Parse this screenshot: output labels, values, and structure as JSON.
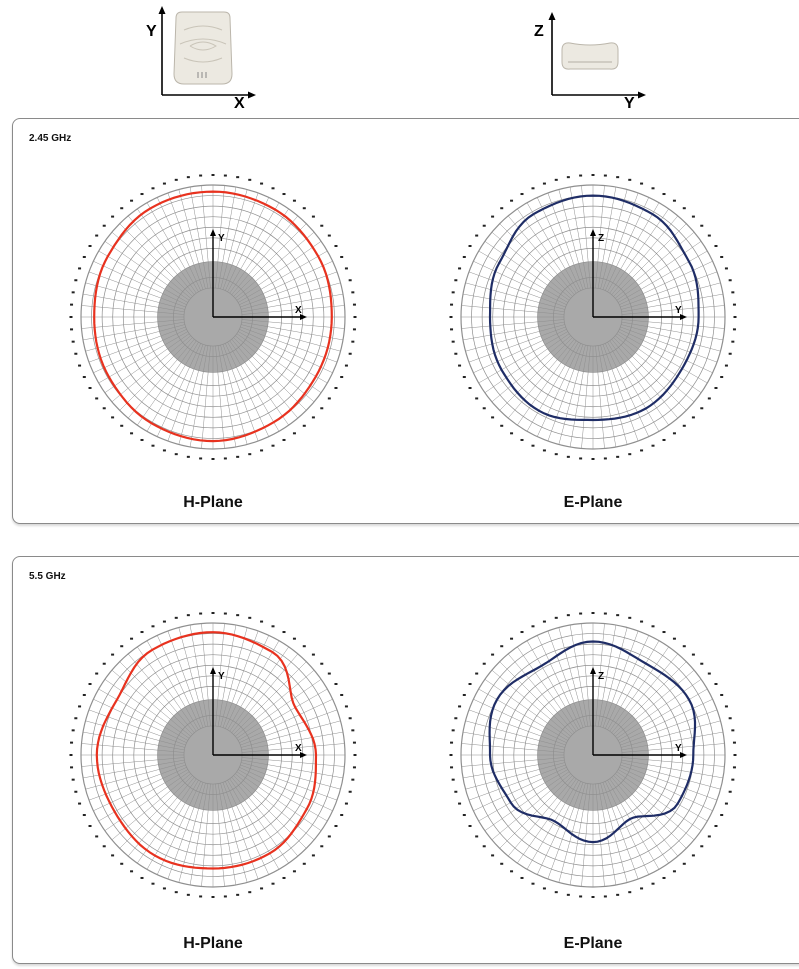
{
  "top_diagrams": [
    {
      "axis_vertical": "Y",
      "axis_horizontal": "X",
      "device_view": "front"
    },
    {
      "axis_vertical": "Z",
      "axis_horizontal": "Y",
      "device_view": "side"
    }
  ],
  "colors": {
    "h_plane": "#e8321f",
    "e_plane": "#1f2d66",
    "grid": "#8f8f8f",
    "core": "#a9a9a9"
  },
  "panels": [
    {
      "label": "2.45 GHz",
      "plots": [
        {
          "name": "H-Plane"
        },
        {
          "name": "E-Plane"
        }
      ]
    },
    {
      "label": "5.5 GHz",
      "plots": [
        {
          "name": "H-Plane"
        },
        {
          "name": "E-Plane"
        }
      ]
    }
  ],
  "chart_data": [
    {
      "type": "polar",
      "title": "2.45 GHz",
      "subtitle": "H-Plane",
      "series_color": "#e8321f",
      "axes": {
        "vertical": "Y",
        "horizontal": "X"
      },
      "angle_deg": [
        0,
        30,
        60,
        90,
        120,
        150,
        180,
        210,
        240,
        270,
        300,
        330
      ],
      "gain_norm": [
        0.95,
        0.94,
        0.92,
        0.9,
        0.9,
        0.92,
        0.94,
        0.93,
        0.91,
        0.9,
        0.92,
        0.95
      ]
    },
    {
      "type": "polar",
      "title": "2.45 GHz",
      "subtitle": "E-Plane",
      "series_color": "#1f2d66",
      "axes": {
        "vertical": "Z",
        "horizontal": "Y"
      },
      "angle_deg": [
        0,
        30,
        60,
        90,
        120,
        150,
        180,
        210,
        240,
        270,
        300,
        330
      ],
      "gain_norm": [
        0.92,
        0.9,
        0.84,
        0.8,
        0.78,
        0.8,
        0.78,
        0.82,
        0.8,
        0.78,
        0.82,
        0.9
      ]
    },
    {
      "type": "polar",
      "title": "5.5 GHz",
      "subtitle": "H-Plane",
      "series_color": "#e8321f",
      "axes": {
        "vertical": "Y",
        "horizontal": "X"
      },
      "angle_deg": [
        0,
        30,
        60,
        90,
        120,
        150,
        180,
        210,
        240,
        270,
        300,
        330
      ],
      "gain_norm": [
        0.93,
        0.9,
        0.72,
        0.78,
        0.82,
        0.86,
        0.86,
        0.88,
        0.86,
        0.88,
        0.84,
        0.92
      ]
    },
    {
      "type": "polar",
      "title": "5.5 GHz",
      "subtitle": "E-Plane",
      "series_color": "#1f2d66",
      "axes": {
        "vertical": "Z",
        "horizontal": "Y"
      },
      "angle_deg": [
        0,
        30,
        60,
        90,
        120,
        150,
        180,
        210,
        240,
        270,
        300,
        330
      ],
      "gain_norm": [
        0.86,
        0.8,
        0.84,
        0.76,
        0.74,
        0.56,
        0.66,
        0.58,
        0.72,
        0.78,
        0.84,
        0.78
      ]
    }
  ]
}
